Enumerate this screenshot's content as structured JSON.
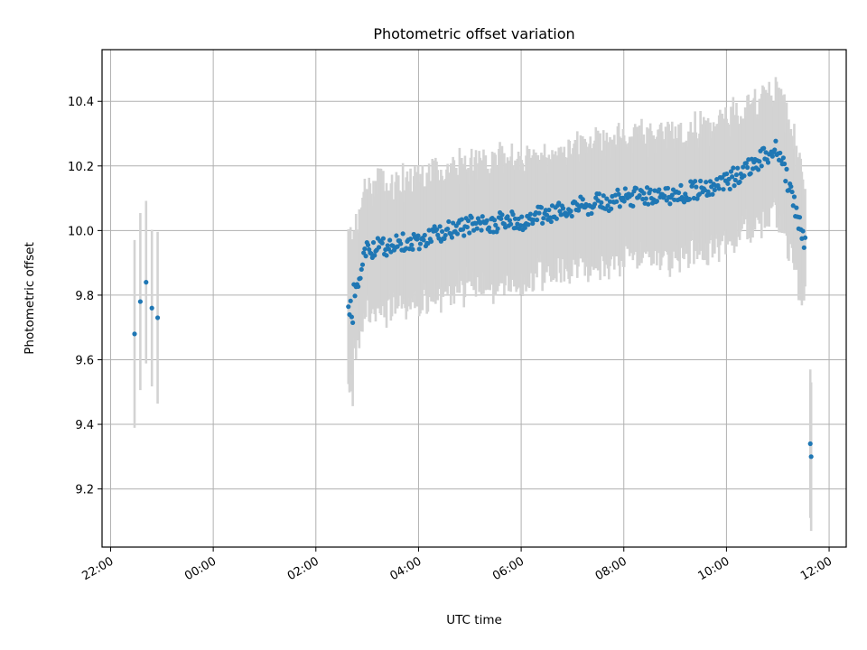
{
  "chart_data": {
    "type": "scatter",
    "title": "Photometric offset variation",
    "xlabel": "UTC time",
    "ylabel": "Photometric offset",
    "x_is_time": true,
    "xlim": [
      "21:50",
      "12:20"
    ],
    "ylim": [
      9.02,
      10.56
    ],
    "x_ticks": [
      "22:00",
      "00:00",
      "02:00",
      "04:00",
      "06:00",
      "08:00",
      "10:00",
      "12:00"
    ],
    "y_ticks": [
      "9.2",
      "9.4",
      "9.6",
      "9.8",
      "10.0",
      "10.2",
      "10.4"
    ],
    "grid": true,
    "legend": "none",
    "colors": {
      "points": "#1f77b4",
      "errorbars": "#d3d3d3",
      "grid": "#b0b0b0",
      "axes": "#000000"
    },
    "series": [
      {
        "marker": "point",
        "errorbars": "vertical",
        "segments": [
          {
            "x_range": [
              "22:28",
              "22:55"
            ],
            "y_values": [
              9.68,
              9.78,
              9.84,
              9.76,
              9.73
            ],
            "errorbar_half_height": 0.27,
            "note_trend": "isolated early points"
          },
          {
            "x_range": [
              "02:38",
              "11:32"
            ],
            "y_trend": [
              [
                "02:38",
                9.75
              ],
              [
                "03:00",
                9.94
              ],
              [
                "04:00",
                9.97
              ],
              [
                "05:00",
                10.02
              ],
              [
                "06:00",
                10.03
              ],
              [
                "07:00",
                10.07
              ],
              [
                "08:00",
                10.1
              ],
              [
                "09:00",
                10.11
              ],
              [
                "10:00",
                10.15
              ],
              [
                "11:00",
                10.26
              ],
              [
                "11:32",
                9.96
              ]
            ],
            "errorbar_half_height": 0.19,
            "points_count": 420
          },
          {
            "x_range": [
              "11:38",
              "11:39"
            ],
            "y_values": [
              9.34,
              9.3
            ],
            "errorbar_half_height": 0.23
          }
        ]
      }
    ]
  }
}
